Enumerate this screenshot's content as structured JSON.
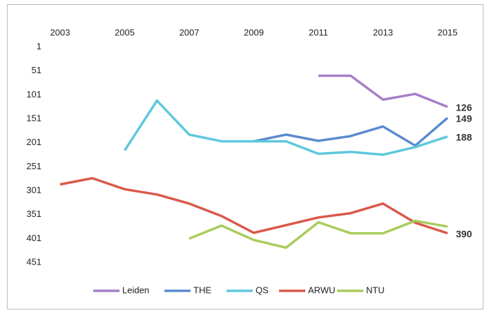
{
  "chart_data": {
    "type": "line",
    "x": [
      2003,
      2004,
      2005,
      2006,
      2007,
      2008,
      2009,
      2010,
      2011,
      2012,
      2013,
      2014,
      2015
    ],
    "xlim": [
      2003,
      2015
    ],
    "xticks": [
      2003,
      2005,
      2007,
      2009,
      2011,
      2013,
      2015
    ],
    "ylim": [
      1,
      451
    ],
    "yticks": [
      1,
      51,
      101,
      151,
      201,
      251,
      301,
      351,
      401,
      451
    ],
    "y_inverted": true,
    "legend": "bottom",
    "series": [
      {
        "name": "Leiden",
        "color": "#a47fc8",
        "end_label": true,
        "values": [
          null,
          null,
          null,
          null,
          null,
          null,
          null,
          null,
          61,
          61,
          111,
          99,
          126
        ]
      },
      {
        "name": "THE",
        "color": "#5b8bd0",
        "end_label": true,
        "values": [
          null,
          null,
          null,
          null,
          null,
          null,
          198,
          184,
          197,
          187,
          167,
          207,
          149
        ]
      },
      {
        "name": "QS",
        "color": "#5ec8dd",
        "end_label": true,
        "values": [
          null,
          null,
          217,
          113,
          184,
          198,
          198,
          198,
          224,
          220,
          226,
          210,
          188
        ]
      },
      {
        "name": "ARWU",
        "color": "#d9584a",
        "end_label": true,
        "values": [
          288,
          275,
          298,
          309,
          328,
          354,
          389,
          373,
          357,
          348,
          328,
          368,
          390
        ]
      },
      {
        "name": "NTU",
        "color": "#a8cc5b",
        "end_label": false,
        "values": [
          null,
          null,
          null,
          null,
          401,
          374,
          404,
          420,
          367,
          390,
          390,
          364,
          376
        ]
      }
    ]
  }
}
